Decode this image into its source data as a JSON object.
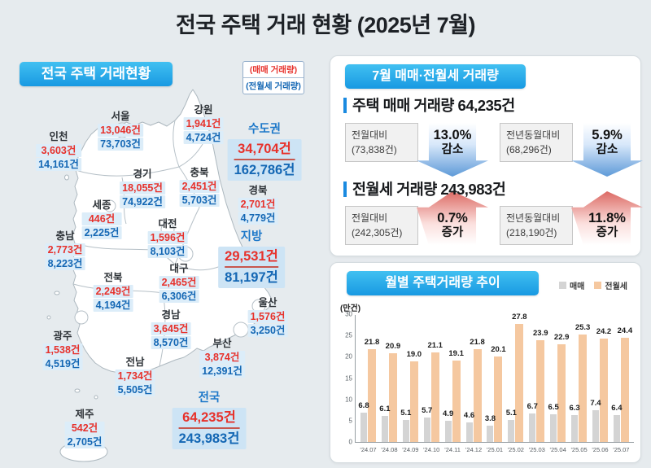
{
  "page": {
    "title": "전국 주택 거래 현황 (2025년 7월)"
  },
  "map_panel": {
    "header": "전국 주택 거래현황",
    "legend": {
      "sale": "(매매 거래량)",
      "rent": "(전월세 거래량)"
    },
    "regions": [
      {
        "name": "서울",
        "sale": "13,046건",
        "rent": "73,703건"
      },
      {
        "name": "인천",
        "sale": "3,603건",
        "rent": "14,161건"
      },
      {
        "name": "강원",
        "sale": "1,941건",
        "rent": "4,724건"
      },
      {
        "name": "경기",
        "sale": "18,055건",
        "rent": "74,922건"
      },
      {
        "name": "충북",
        "sale": "2,451건",
        "rent": "5,703건"
      },
      {
        "name": "경북",
        "sale": "2,701건",
        "rent": "4,779건"
      },
      {
        "name": "세종",
        "sale": "446건",
        "rent": "2,225건"
      },
      {
        "name": "대전",
        "sale": "1,596건",
        "rent": "8,103건"
      },
      {
        "name": "충남",
        "sale": "2,773건",
        "rent": "8,223건"
      },
      {
        "name": "전북",
        "sale": "2,249건",
        "rent": "4,194건"
      },
      {
        "name": "대구",
        "sale": "2,465건",
        "rent": "6,306건"
      },
      {
        "name": "울산",
        "sale": "1,576건",
        "rent": "3,250건"
      },
      {
        "name": "경남",
        "sale": "3,645건",
        "rent": "8,570건"
      },
      {
        "name": "광주",
        "sale": "1,538건",
        "rent": "4,519건"
      },
      {
        "name": "부산",
        "sale": "3,874건",
        "rent": "12,391건"
      },
      {
        "name": "전남",
        "sale": "1,734건",
        "rent": "5,505건"
      },
      {
        "name": "제주",
        "sale": "542건",
        "rent": "2,705건"
      }
    ],
    "totals": [
      {
        "name": "수도권",
        "sale": "34,704건",
        "rent": "162,786건"
      },
      {
        "name": "지방",
        "sale": "29,531건",
        "rent": "81,197건"
      },
      {
        "name": "전국",
        "sale": "64,235건",
        "rent": "243,983건"
      }
    ]
  },
  "stats_panel": {
    "header": "7월 매매·전월세 거래량",
    "sections": [
      {
        "title": "주택 매매 거래량 64,235건",
        "items": [
          {
            "label": "전월대비",
            "base": "(73,838건)",
            "pct": "13.0%",
            "dir": "감소",
            "trend": "down"
          },
          {
            "label": "전년동월대비",
            "base": "(68,296건)",
            "pct": "5.9%",
            "dir": "감소",
            "trend": "down"
          }
        ]
      },
      {
        "title": "전월세 거래량 243,983건",
        "items": [
          {
            "label": "전월대비",
            "base": "(242,305건)",
            "pct": "0.7%",
            "dir": "증가",
            "trend": "up"
          },
          {
            "label": "전년동월대비",
            "base": "(218,190건)",
            "pct": "11.8%",
            "dir": "증가",
            "trend": "up"
          }
        ]
      }
    ]
  },
  "chart_panel": {
    "header": "월별 주택거래량 추이",
    "unit": "(만건)",
    "legend": [
      {
        "label": "매매",
        "color": "#d4d4d4"
      },
      {
        "label": "전월세",
        "color": "#f5c8a0"
      }
    ]
  },
  "chart_data": {
    "type": "bar",
    "title": "월별 주택거래량 추이",
    "ylabel": "(만건)",
    "ylim": [
      0,
      30
    ],
    "yticks": [
      0,
      5,
      10,
      15,
      20,
      25,
      30
    ],
    "grid": false,
    "legend_position": "top-right",
    "categories": [
      "'24.07",
      "'24.08",
      "'24.09",
      "'24.10",
      "'24.11",
      "'24.12",
      "'25.01",
      "'25.02",
      "'25.03",
      "'25.04",
      "'25.05",
      "'25.06",
      "'25.07"
    ],
    "series": [
      {
        "name": "매매",
        "values": [
          6.8,
          6.1,
          5.1,
          5.7,
          4.9,
          4.6,
          3.8,
          5.1,
          6.7,
          6.5,
          6.3,
          7.4,
          6.4
        ]
      },
      {
        "name": "전월세",
        "values": [
          21.8,
          20.9,
          19.0,
          21.1,
          19.1,
          21.8,
          20.1,
          27.8,
          23.9,
          22.9,
          25.3,
          24.2,
          24.4
        ]
      }
    ]
  },
  "colors": {
    "banner_blue_top": "#41c0f1",
    "banner_blue_bottom": "#1899e2",
    "sale_red": "#e7312b",
    "rent_blue": "#1467b4",
    "total_blue": "#1d78c9",
    "highlight_bg": "#dcedf9",
    "highlight_bg_big": "#cde4f5",
    "bar_sale_gray": "#d4d4d4",
    "bar_rent_orange": "#f5c8a0",
    "arrow_down_blue": "#5e9ad8",
    "arrow_up_red": "#dc6a64",
    "background": "#e6ebee"
  }
}
